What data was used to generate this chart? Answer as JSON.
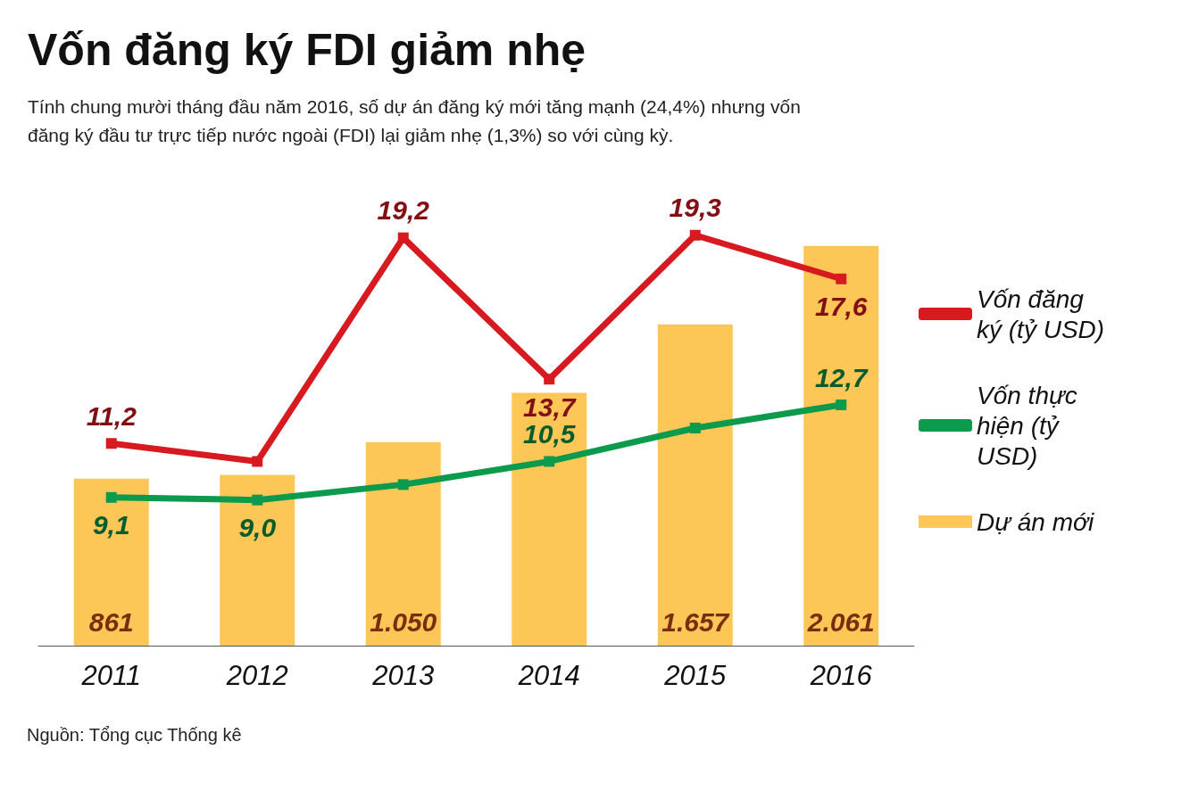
{
  "chart_data": {
    "type": "bar",
    "title": "Vốn đăng ký FDI giảm nhẹ",
    "subtitle": "Tính chung mười tháng đầu năm 2016, số dự án đăng ký mới tăng mạnh (24,4%) nhưng vốn đăng ký đầu tư trực tiếp nước ngoài (FDI) lại giảm nhẹ (1,3%) so với cùng kỳ.",
    "annotations": [
      "Nguồn: Tổng cục Thống kê"
    ],
    "categories": [
      "2011",
      "2012",
      "2013",
      "2014",
      "2015",
      "2016"
    ],
    "series": [
      {
        "name": "Vốn đăng ký (tỷ USD)",
        "type": "line",
        "color": "#d71920",
        "values": [
          11.2,
          10.5,
          19.2,
          13.7,
          19.3,
          17.6
        ],
        "value_labels": [
          "11,2",
          null,
          "19,2",
          "13,7",
          "19,3",
          "17,6"
        ]
      },
      {
        "name": "Vốn thực hiện (tỷ USD)",
        "type": "line",
        "color": "#0c9a4c",
        "values": [
          9.1,
          9.0,
          9.6,
          10.5,
          11.8,
          12.7
        ],
        "value_labels": [
          "9,1",
          "9,0",
          null,
          "10,5",
          null,
          "12,7"
        ]
      },
      {
        "name": "Dự án mới",
        "axis": "y2",
        "color": "#fcc757",
        "values": [
          861,
          881,
          1050,
          1304,
          1657,
          2061
        ],
        "value_labels": [
          "861",
          null,
          "1.050",
          null,
          "1.657",
          "2.061"
        ]
      }
    ],
    "tick_labels": "x",
    "legend": "right",
    "marker": "square"
  }
}
